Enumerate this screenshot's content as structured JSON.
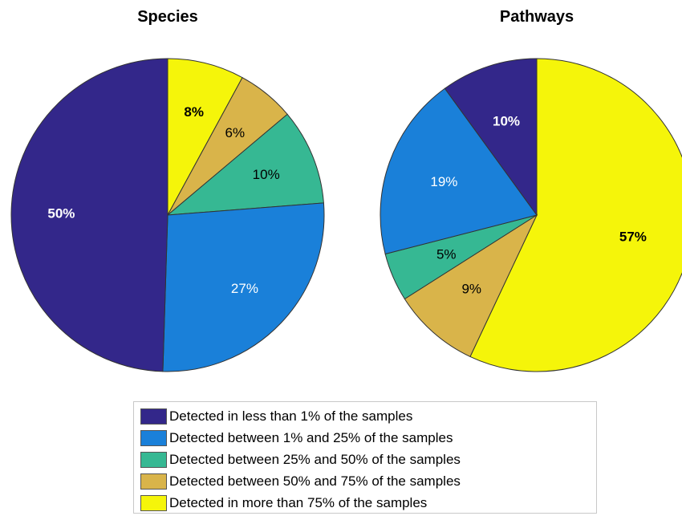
{
  "chart_data": [
    {
      "type": "pie",
      "title": "Species",
      "categories": [
        "Detected in more than 75% of the samples",
        "Detected between 50% and 75% of the samples",
        "Detected between 25% and 50% of the samples",
        "Detected between 1% and 25% of the samples",
        "Detected in less than 1% of the samples"
      ],
      "values": [
        8,
        6,
        10,
        27,
        50
      ],
      "labels": [
        "8%",
        "6%",
        "10%",
        "27%",
        "50%"
      ],
      "label_bold": [
        true,
        false,
        false,
        false,
        true
      ],
      "label_colors": [
        "#000000",
        "#000000",
        "#000000",
        "#ffffff",
        "#ffffff"
      ],
      "colors": [
        "#f5f50a",
        "#d9b44a",
        "#36b893",
        "#1a80d9",
        "#33278a"
      ]
    },
    {
      "type": "pie",
      "title": "Pathways",
      "categories": [
        "Detected in more than 75% of the samples",
        "Detected between 50% and 75% of the samples",
        "Detected between 25% and 50% of the samples",
        "Detected between 1% and 25% of the samples",
        "Detected in less than 1% of the samples"
      ],
      "values": [
        57,
        9,
        5,
        19,
        10
      ],
      "labels": [
        "57%",
        "9%",
        "5%",
        "19%",
        "10%"
      ],
      "label_bold": [
        true,
        false,
        false,
        false,
        true
      ],
      "label_colors": [
        "#000000",
        "#000000",
        "#000000",
        "#ffffff",
        "#ffffff"
      ],
      "colors": [
        "#f5f50a",
        "#d9b44a",
        "#36b893",
        "#1a80d9",
        "#33278a"
      ]
    }
  ],
  "legend": {
    "items": [
      {
        "label": "Detected in less than 1% of the samples",
        "color": "#33278a"
      },
      {
        "label": "Detected between 1% and 25% of the samples",
        "color": "#1a80d9"
      },
      {
        "label": "Detected between 25% and 50% of the samples",
        "color": "#36b893"
      },
      {
        "label": "Detected between 50% and 75% of the samples",
        "color": "#d9b44a"
      },
      {
        "label": "Detected in more than 75% of the samples",
        "color": "#f5f50a"
      }
    ]
  }
}
